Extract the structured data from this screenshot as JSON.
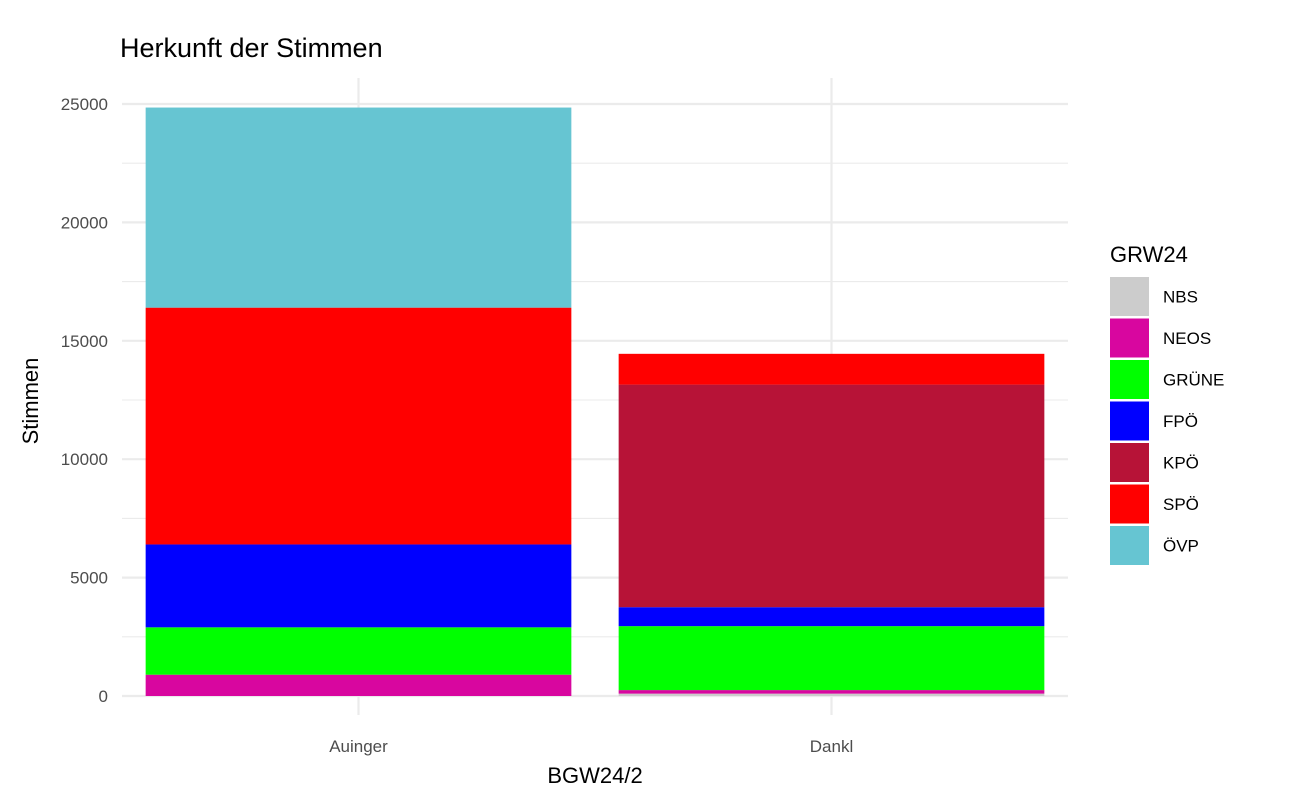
{
  "chart_data": {
    "type": "bar",
    "stacked": true,
    "title": "Herkunft der Stimmen",
    "xlabel": "BGW24/2",
    "ylabel": "Stimmen",
    "categories": [
      "Auinger",
      "Dankl"
    ],
    "ylim": [
      0,
      25000
    ],
    "yticks": [
      "0",
      "5000",
      "10000",
      "15000",
      "20000",
      "25000"
    ],
    "grid": true,
    "legend": {
      "title": "GRW24",
      "position": "right",
      "order": [
        "NBS",
        "NEOS",
        "GRÜNE",
        "FPÖ",
        "KPÖ",
        "SPÖ",
        "ÖVP"
      ]
    },
    "series": [
      {
        "name": "NBS",
        "color": "#cccccc",
        "values": [
          0,
          100
        ]
      },
      {
        "name": "NEOS",
        "color": "#d8069f",
        "values": [
          900,
          150
        ]
      },
      {
        "name": "GRÜNE",
        "color": "#00ff00",
        "values": [
          2000,
          2700
        ]
      },
      {
        "name": "FPÖ",
        "color": "#0000ff",
        "values": [
          3500,
          800
        ]
      },
      {
        "name": "KPÖ",
        "color": "#b71337",
        "values": [
          0,
          9400
        ]
      },
      {
        "name": "SPÖ",
        "color": "#ff0000",
        "values": [
          10000,
          1300
        ]
      },
      {
        "name": "ÖVP",
        "color": "#66c5d2",
        "values": [
          8450,
          0
        ]
      }
    ]
  }
}
